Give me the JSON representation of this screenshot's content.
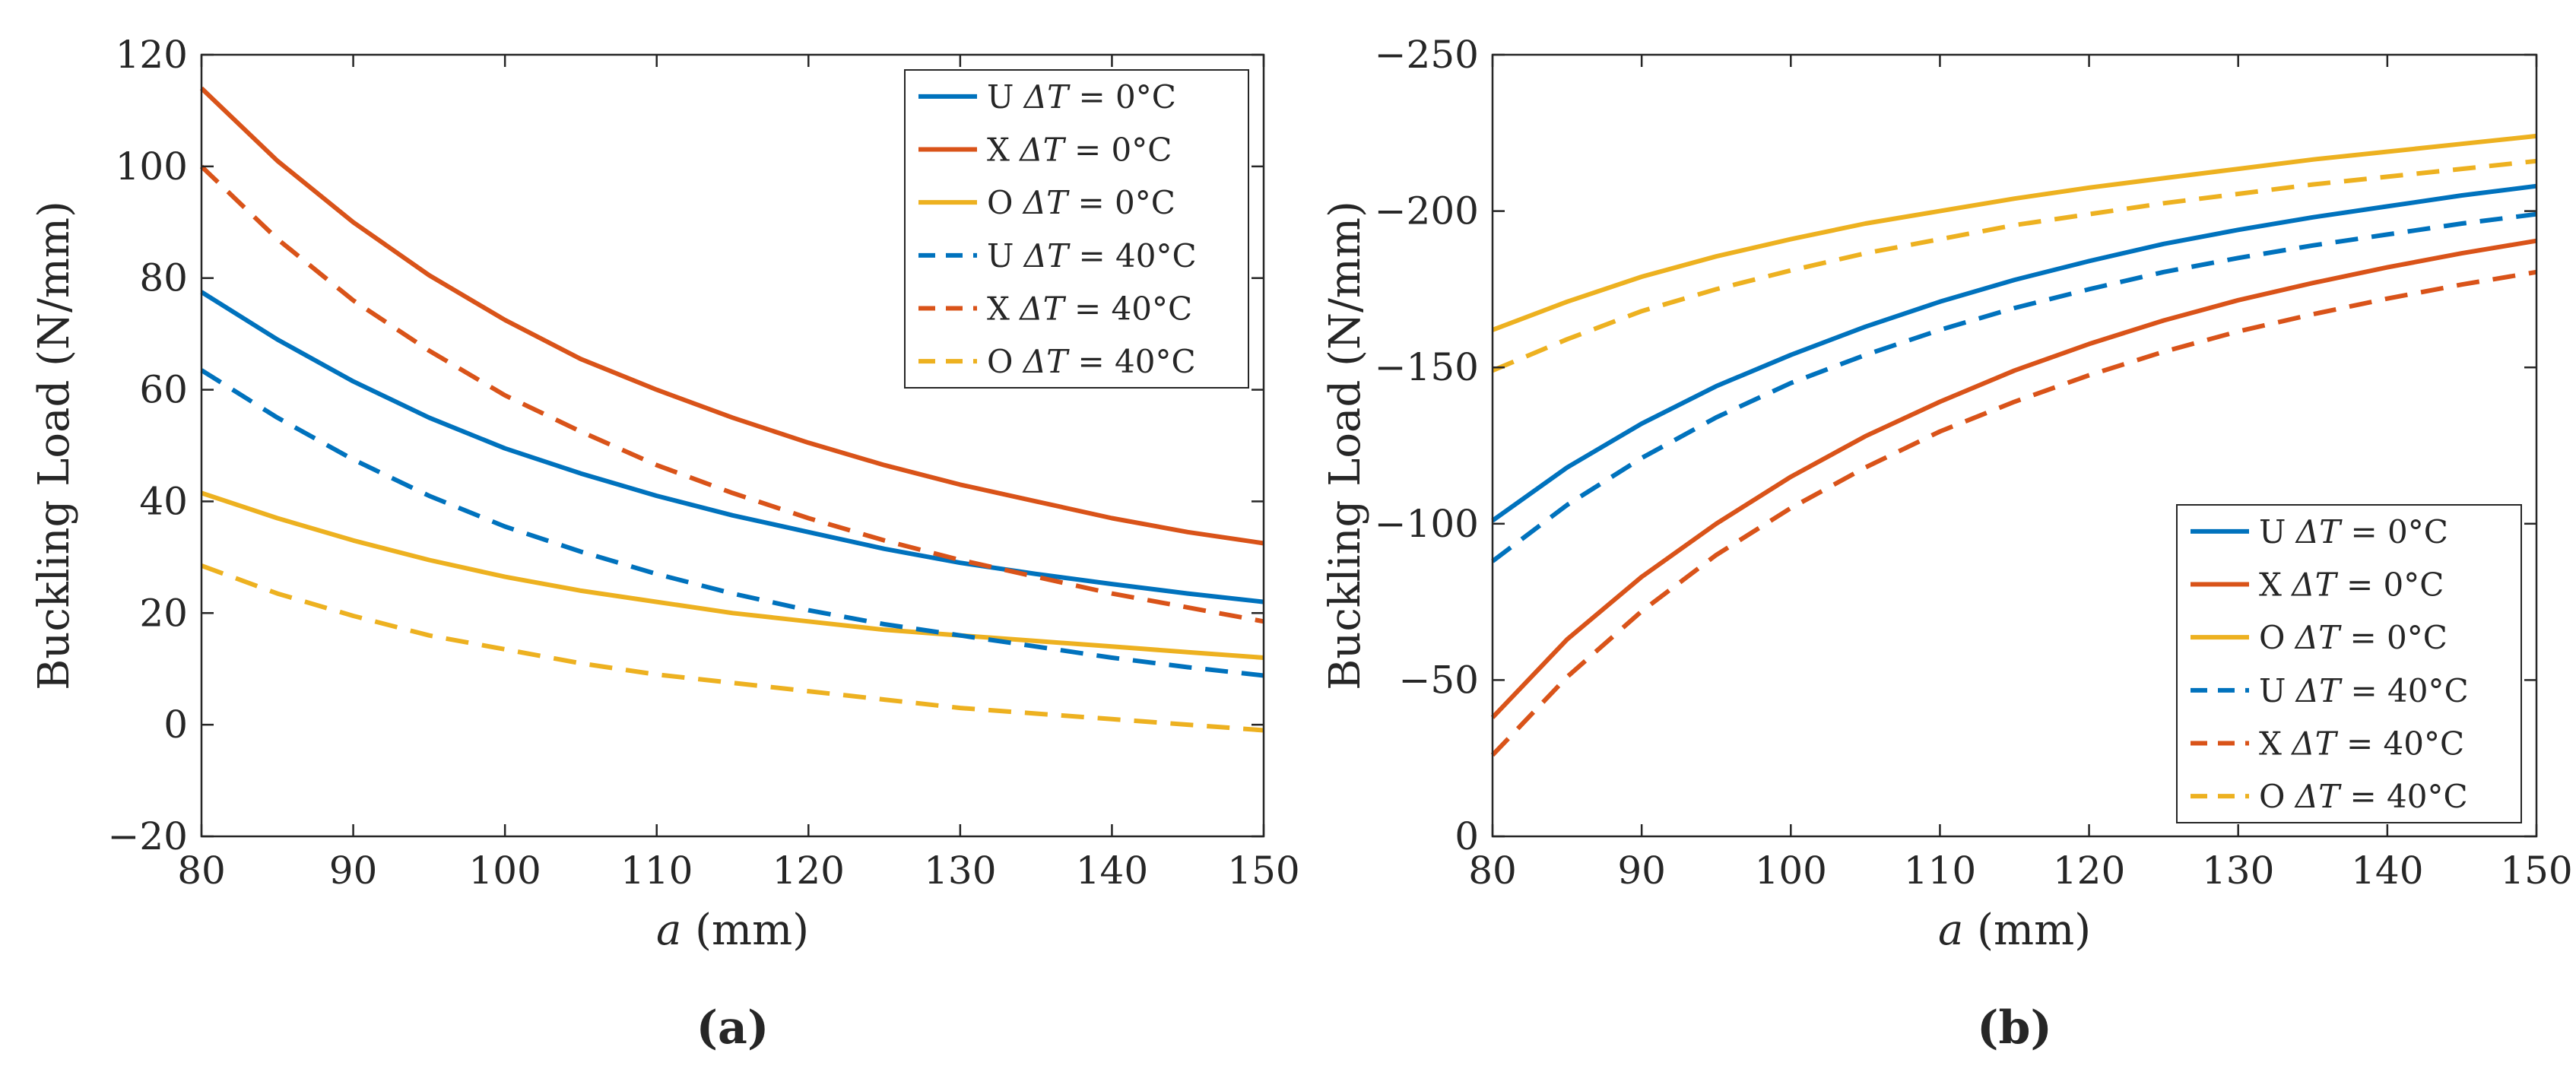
{
  "colors": {
    "U": "#0072BD",
    "X": "#D95319",
    "O": "#EDB120",
    "axis": "#262626"
  },
  "chart_data": [
    {
      "type": "line",
      "panel_label": "(a)",
      "xlabel": "a (mm)",
      "xlabel_var": "a",
      "xlabel_unit": " (mm)",
      "ylabel": "Buckling Load (N/mm)",
      "xlim": [
        80,
        150
      ],
      "ylim": [
        -20,
        120
      ],
      "xticks": [
        80,
        90,
        100,
        110,
        120,
        130,
        140,
        150
      ],
      "xtick_labels": [
        "80",
        "90",
        "100",
        "110",
        "120",
        "130",
        "140",
        "150"
      ],
      "yticks": [
        -20,
        0,
        20,
        40,
        60,
        80,
        100,
        120
      ],
      "ytick_labels": [
        "−20",
        "0",
        "20",
        "40",
        "60",
        "80",
        "100",
        "120"
      ],
      "grid": false,
      "legend_position": "top-right",
      "x": [
        80,
        85,
        90,
        95,
        100,
        105,
        110,
        115,
        120,
        125,
        130,
        135,
        140,
        145,
        150
      ],
      "series": [
        {
          "name": "U ΔT = 0°C",
          "mat": "U",
          "dT": "0°C",
          "style": "solid",
          "colorKey": "U",
          "values": [
            77.5,
            69,
            61.5,
            55,
            49.5,
            45,
            41,
            37.5,
            34.5,
            31.5,
            29,
            27,
            25.2,
            23.5,
            22
          ]
        },
        {
          "name": "X ΔT = 0°C",
          "mat": "X",
          "dT": "0°C",
          "style": "solid",
          "colorKey": "X",
          "values": [
            114,
            101,
            90,
            80.5,
            72.5,
            65.5,
            60,
            55,
            50.5,
            46.5,
            43,
            40,
            37,
            34.5,
            32.5
          ]
        },
        {
          "name": "O ΔT = 0°C",
          "mat": "O",
          "dT": "0°C",
          "style": "solid",
          "colorKey": "O",
          "values": [
            41.5,
            37,
            33,
            29.5,
            26.5,
            24,
            22,
            20,
            18.5,
            17,
            16,
            15,
            14,
            13,
            12
          ]
        },
        {
          "name": "U ΔT = 40°C",
          "mat": "U",
          "dT": "40°C",
          "style": "dashed",
          "colorKey": "U",
          "values": [
            63.5,
            55,
            47.5,
            41,
            35.5,
            31,
            27,
            23.5,
            20.5,
            18,
            16,
            14,
            12,
            10.3,
            8.8
          ]
        },
        {
          "name": "X ΔT = 40°C",
          "mat": "X",
          "dT": "40°C",
          "style": "dashed",
          "colorKey": "X",
          "values": [
            100,
            87,
            76,
            67,
            59,
            52.5,
            46.5,
            41.5,
            37,
            33,
            29.5,
            26.5,
            23.5,
            21,
            18.5
          ]
        },
        {
          "name": "O ΔT = 40°C",
          "mat": "O",
          "dT": "40°C",
          "style": "dashed",
          "colorKey": "O",
          "values": [
            28.5,
            23.5,
            19.5,
            16,
            13.5,
            11,
            9,
            7.5,
            6,
            4.5,
            3,
            2,
            1,
            0,
            -1
          ]
        }
      ]
    },
    {
      "type": "line",
      "panel_label": "(b)",
      "xlabel": "a (mm)",
      "xlabel_var": "a",
      "xlabel_unit": " (mm)",
      "ylabel": "Buckling Load (N/mm)",
      "xlim": [
        80,
        150
      ],
      "ylim": [
        0,
        -250
      ],
      "xticks": [
        80,
        90,
        100,
        110,
        120,
        130,
        140,
        150
      ],
      "xtick_labels": [
        "80",
        "90",
        "100",
        "110",
        "120",
        "130",
        "140",
        "150"
      ],
      "yticks": [
        0,
        -50,
        -100,
        -150,
        -200,
        -250
      ],
      "ytick_labels": [
        "0",
        "−50",
        "−100",
        "−150",
        "−200",
        "−250"
      ],
      "grid": false,
      "legend_position": "bottom-right",
      "x": [
        80,
        85,
        90,
        95,
        100,
        105,
        110,
        115,
        120,
        125,
        130,
        135,
        140,
        145,
        150
      ],
      "series": [
        {
          "name": "U ΔT = 0°C",
          "mat": "U",
          "dT": "0°C",
          "style": "solid",
          "colorKey": "U",
          "values": [
            -101,
            -118,
            -132,
            -144,
            -154,
            -163,
            -171,
            -178,
            -184,
            -189.5,
            -194,
            -198,
            -201.5,
            -205,
            -208
          ]
        },
        {
          "name": "X ΔT = 0°C",
          "mat": "X",
          "dT": "0°C",
          "style": "solid",
          "colorKey": "X",
          "values": [
            -38,
            -63,
            -83,
            -100,
            -115,
            -128,
            -139,
            -149,
            -157.5,
            -165,
            -171.5,
            -177,
            -182,
            -186.5,
            -190.5
          ]
        },
        {
          "name": "O ΔT = 0°C",
          "mat": "O",
          "dT": "0°C",
          "style": "solid",
          "colorKey": "O",
          "values": [
            -162,
            -171,
            -179,
            -185.5,
            -191,
            -196,
            -200,
            -204,
            -207.5,
            -210.5,
            -213.5,
            -216.5,
            -219,
            -221.5,
            -224
          ]
        },
        {
          "name": "U ΔT = 40°C",
          "mat": "U",
          "dT": "40°C",
          "style": "dashed",
          "colorKey": "U",
          "values": [
            -88,
            -106,
            -121,
            -134,
            -145,
            -154,
            -162,
            -169,
            -175,
            -180.5,
            -185,
            -189,
            -192.5,
            -196,
            -199
          ]
        },
        {
          "name": "X ΔT = 40°C",
          "mat": "X",
          "dT": "40°C",
          "style": "dashed",
          "colorKey": "X",
          "values": [
            -26,
            -51,
            -72,
            -90,
            -105,
            -118,
            -129.5,
            -139,
            -147.5,
            -155,
            -161.5,
            -167,
            -172,
            -176.5,
            -180.5
          ]
        },
        {
          "name": "O ΔT = 40°C",
          "mat": "O",
          "dT": "40°C",
          "style": "dashed",
          "colorKey": "O",
          "values": [
            -149,
            -159,
            -168,
            -175,
            -181,
            -186.5,
            -191,
            -195.5,
            -199,
            -202.5,
            -205.5,
            -208.5,
            -211,
            -213.5,
            -216
          ]
        }
      ]
    }
  ]
}
